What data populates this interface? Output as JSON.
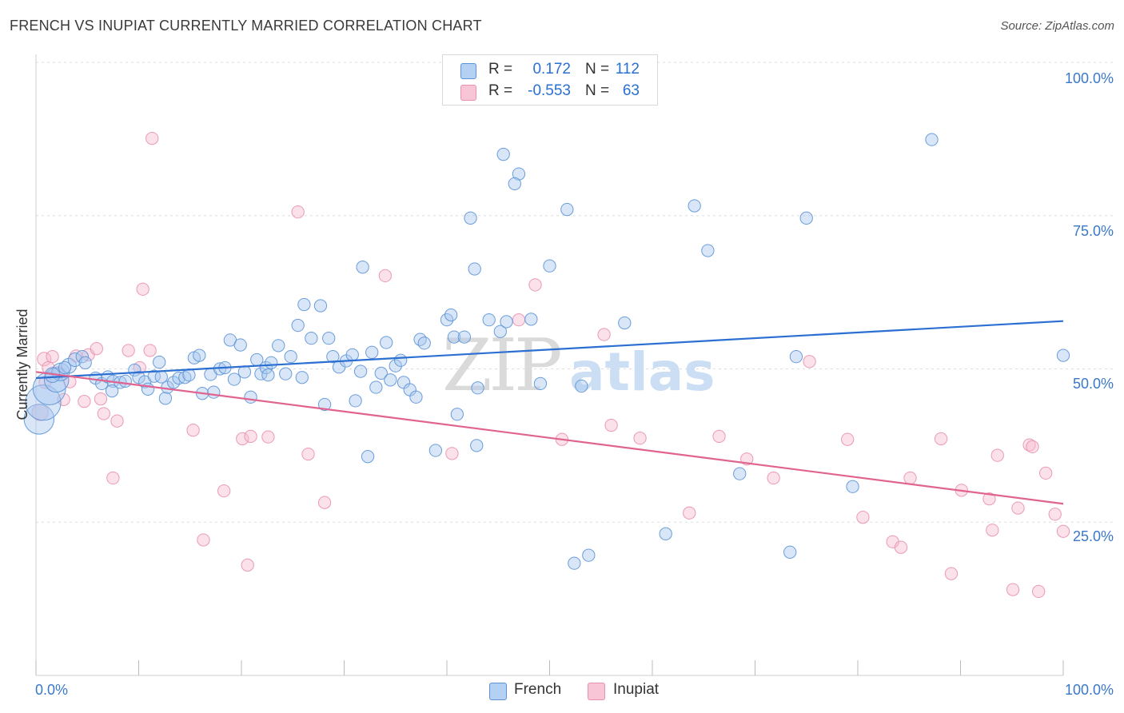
{
  "title": "FRENCH VS INUPIAT CURRENTLY MARRIED CORRELATION CHART",
  "source": "Source: ZipAtlas.com",
  "legend": {
    "rows": [
      {
        "r_label": "R =",
        "r_value": "0.172",
        "n_label": "N =",
        "n_value": "112"
      },
      {
        "r_label": "R =",
        "r_value": "-0.553",
        "n_label": "N =",
        "n_value": "63"
      }
    ]
  },
  "bottom_legend": {
    "french": "French",
    "inupiat": "Inupiat"
  },
  "watermark": {
    "zip": "ZIP",
    "atlas": "atlas"
  },
  "colors": {
    "french_fill": "#a9c8f0",
    "french_stroke": "#5b93d6",
    "french_line": "#2a6fd1",
    "inupiat_fill": "#f6bcd0",
    "inupiat_stroke": "#e98fb0",
    "inupiat_line": "#e0648f",
    "axis_text": "#3a78c9",
    "grid": "#dddddd"
  },
  "chart_data": {
    "type": "scatter",
    "title": "FRENCH VS INUPIAT CURRENTLY MARRIED CORRELATION CHART",
    "xlabel": "",
    "ylabel": "Currently Married",
    "xlim": [
      0,
      100
    ],
    "ylim": [
      0,
      100
    ],
    "x_tick_labels": [
      "0.0%",
      "100.0%"
    ],
    "y_tick_labels": [
      "25.0%",
      "50.0%",
      "75.0%",
      "100.0%"
    ],
    "y_ticks": [
      25,
      50,
      75,
      100
    ],
    "grid": true,
    "series": [
      {
        "name": "French",
        "r": 0.172,
        "n": 112,
        "trend": {
          "x": [
            0,
            100
          ],
          "y": [
            48.5,
            57.8
          ]
        },
        "points": [
          [
            0.3,
            41.8,
            2.2
          ],
          [
            0.7,
            44.5,
            2.6
          ],
          [
            1.3,
            46.8,
            2.4
          ],
          [
            2.0,
            48.2,
            1.8
          ],
          [
            2.4,
            49.5,
            1.3
          ],
          [
            3.2,
            50.5,
            1.1
          ],
          [
            3.8,
            51.5,
            1.0
          ],
          [
            1.6,
            49.0,
            1.1
          ],
          [
            4.5,
            52.0,
            0.9
          ],
          [
            4.8,
            51.0,
            0.9
          ],
          [
            5.8,
            48.5,
            0.9
          ],
          [
            6.4,
            47.6,
            0.9
          ],
          [
            7.0,
            48.7,
            0.9
          ],
          [
            7.5,
            48.0,
            0.9
          ],
          [
            7.4,
            46.4,
            0.9
          ],
          [
            8.2,
            47.8,
            0.9
          ],
          [
            8.7,
            48.0,
            0.9
          ],
          [
            9.6,
            49.8,
            0.9
          ],
          [
            10.0,
            48.6,
            0.9
          ],
          [
            10.6,
            47.9,
            0.9
          ],
          [
            10.9,
            46.7,
            0.9
          ],
          [
            11.5,
            48.8,
            0.9
          ],
          [
            12.2,
            48.7,
            0.9
          ],
          [
            12.6,
            45.2,
            0.9
          ],
          [
            12.8,
            47.0,
            0.9
          ],
          [
            13.4,
            47.8,
            0.9
          ],
          [
            13.9,
            48.5,
            0.9
          ],
          [
            14.5,
            48.6,
            0.9
          ],
          [
            14.9,
            49.0,
            0.9
          ],
          [
            15.4,
            51.8,
            0.9
          ],
          [
            15.9,
            52.2,
            0.9
          ],
          [
            16.2,
            46.0,
            0.9
          ],
          [
            17.0,
            49.1,
            0.9
          ],
          [
            17.3,
            46.2,
            0.9
          ],
          [
            17.9,
            50.0,
            0.9
          ],
          [
            18.4,
            50.2,
            0.9
          ],
          [
            18.9,
            54.7,
            0.9
          ],
          [
            19.3,
            48.3,
            0.9
          ],
          [
            19.9,
            53.9,
            0.9
          ],
          [
            20.3,
            49.5,
            0.9
          ],
          [
            20.9,
            45.4,
            0.9
          ],
          [
            21.5,
            51.5,
            0.9
          ],
          [
            21.9,
            49.2,
            0.9
          ],
          [
            22.4,
            50.2,
            0.9
          ],
          [
            22.9,
            51.0,
            0.9
          ],
          [
            23.6,
            53.8,
            0.9
          ],
          [
            24.3,
            49.2,
            0.9
          ],
          [
            24.8,
            52.0,
            0.9
          ],
          [
            25.5,
            57.1,
            0.9
          ],
          [
            25.9,
            48.6,
            0.9
          ],
          [
            26.1,
            60.5,
            0.9
          ],
          [
            26.8,
            55.0,
            0.9
          ],
          [
            27.7,
            60.3,
            0.9
          ],
          [
            28.1,
            44.2,
            0.9
          ],
          [
            28.5,
            55.0,
            0.9
          ],
          [
            28.9,
            52.0,
            0.9
          ],
          [
            29.5,
            50.3,
            0.9
          ],
          [
            30.2,
            51.3,
            0.9
          ],
          [
            30.8,
            52.3,
            0.9
          ],
          [
            31.1,
            44.8,
            0.9
          ],
          [
            31.6,
            49.6,
            0.9
          ],
          [
            31.8,
            66.6,
            0.9
          ],
          [
            32.3,
            35.7,
            0.9
          ],
          [
            32.7,
            52.7,
            0.9
          ],
          [
            33.1,
            47.0,
            0.9
          ],
          [
            33.6,
            49.3,
            0.9
          ],
          [
            34.1,
            54.3,
            0.9
          ],
          [
            34.5,
            48.2,
            0.9
          ],
          [
            35.0,
            50.5,
            0.9
          ],
          [
            35.5,
            51.4,
            0.9
          ],
          [
            35.8,
            47.8,
            0.9
          ],
          [
            36.4,
            46.6,
            0.9
          ],
          [
            37.0,
            45.4,
            0.9
          ],
          [
            37.4,
            54.8,
            0.9
          ],
          [
            37.8,
            54.2,
            0.9
          ],
          [
            38.9,
            36.7,
            0.9
          ],
          [
            40.0,
            58.0,
            0.9
          ],
          [
            40.4,
            58.8,
            0.9
          ],
          [
            40.7,
            55.2,
            0.9
          ],
          [
            41.0,
            42.6,
            0.9
          ],
          [
            41.7,
            55.2,
            0.9
          ],
          [
            42.3,
            74.6,
            0.9
          ],
          [
            42.7,
            66.3,
            0.9
          ],
          [
            42.9,
            37.5,
            0.9
          ],
          [
            43.0,
            46.9,
            0.9
          ],
          [
            44.1,
            58.0,
            0.9
          ],
          [
            45.2,
            56.1,
            0.9
          ],
          [
            45.5,
            85.0,
            0.9
          ],
          [
            45.8,
            57.7,
            0.9
          ],
          [
            47.0,
            81.8,
            0.9
          ],
          [
            48.2,
            58.1,
            0.9
          ],
          [
            49.1,
            47.6,
            0.9
          ],
          [
            50.0,
            66.8,
            0.9
          ],
          [
            51.7,
            76.0,
            0.9
          ],
          [
            52.4,
            18.3,
            0.9
          ],
          [
            53.1,
            47.2,
            0.9
          ],
          [
            53.8,
            19.6,
            0.9
          ],
          [
            57.3,
            57.5,
            0.9
          ],
          [
            61.3,
            23.1,
            0.9
          ],
          [
            64.1,
            76.6,
            0.9
          ],
          [
            65.4,
            69.3,
            0.9
          ],
          [
            68.5,
            32.9,
            0.9
          ],
          [
            73.4,
            20.1,
            0.9
          ],
          [
            74.0,
            52.0,
            0.9
          ],
          [
            75.0,
            74.6,
            0.9
          ],
          [
            79.5,
            30.8,
            0.9
          ],
          [
            87.2,
            87.4,
            0.9
          ],
          [
            100.0,
            52.2,
            0.9
          ],
          [
            46.6,
            80.2,
            0.9
          ],
          [
            22.6,
            49.0,
            0.9
          ],
          [
            2.8,
            50.2,
            0.9
          ],
          [
            12.0,
            51.1,
            0.9
          ]
        ]
      },
      {
        "name": "Inupiat",
        "r": -0.553,
        "n": 63,
        "trend": {
          "x": [
            0,
            100
          ],
          "y": [
            49.5,
            28.0
          ]
        },
        "points": [
          [
            0.4,
            42.9,
            1.2
          ],
          [
            0.8,
            51.6,
            1.0
          ],
          [
            1.2,
            50.2,
            0.9
          ],
          [
            1.6,
            52.0,
            0.9
          ],
          [
            2.2,
            49.4,
            0.9
          ],
          [
            2.7,
            45.0,
            0.9
          ],
          [
            3.3,
            47.9,
            0.9
          ],
          [
            3.9,
            52.1,
            0.9
          ],
          [
            4.7,
            44.7,
            0.9
          ],
          [
            5.1,
            52.3,
            0.9
          ],
          [
            5.9,
            53.3,
            0.9
          ],
          [
            6.3,
            45.1,
            0.9
          ],
          [
            6.6,
            42.7,
            0.9
          ],
          [
            7.5,
            32.2,
            0.9
          ],
          [
            7.9,
            41.5,
            0.9
          ],
          [
            9.0,
            53.0,
            0.9
          ],
          [
            10.1,
            50.2,
            0.9
          ],
          [
            10.4,
            63.0,
            0.9
          ],
          [
            11.1,
            53.0,
            0.9
          ],
          [
            11.3,
            87.6,
            0.9
          ],
          [
            15.3,
            40.0,
            0.9
          ],
          [
            16.3,
            22.1,
            0.9
          ],
          [
            18.3,
            30.1,
            0.9
          ],
          [
            20.1,
            38.6,
            0.9
          ],
          [
            20.9,
            39.0,
            0.9
          ],
          [
            20.6,
            18.0,
            0.9
          ],
          [
            22.6,
            38.9,
            0.9
          ],
          [
            25.5,
            75.6,
            0.9
          ],
          [
            26.5,
            36.1,
            0.9
          ],
          [
            28.1,
            28.2,
            0.9
          ],
          [
            34.0,
            65.2,
            0.9
          ],
          [
            40.5,
            36.2,
            0.9
          ],
          [
            47.0,
            58.0,
            0.9
          ],
          [
            48.6,
            63.7,
            0.9
          ],
          [
            51.2,
            38.5,
            0.9
          ],
          [
            55.3,
            55.6,
            0.9
          ],
          [
            56.0,
            40.8,
            0.9
          ],
          [
            58.8,
            38.7,
            0.9
          ],
          [
            66.5,
            39.0,
            0.9
          ],
          [
            69.2,
            35.3,
            0.9
          ],
          [
            71.8,
            32.2,
            0.9
          ],
          [
            75.3,
            51.2,
            0.9
          ],
          [
            79.0,
            38.5,
            0.9
          ],
          [
            80.5,
            25.8,
            0.9
          ],
          [
            83.4,
            21.8,
            0.9
          ],
          [
            84.2,
            20.9,
            0.9
          ],
          [
            85.1,
            32.2,
            0.9
          ],
          [
            88.1,
            38.6,
            0.9
          ],
          [
            89.1,
            16.6,
            0.9
          ],
          [
            90.1,
            30.2,
            0.9
          ],
          [
            92.8,
            28.8,
            0.9
          ],
          [
            93.1,
            23.7,
            0.9
          ],
          [
            93.6,
            35.9,
            0.9
          ],
          [
            95.1,
            14.0,
            0.9
          ],
          [
            95.6,
            27.3,
            0.9
          ],
          [
            96.7,
            37.6,
            0.9
          ],
          [
            97.0,
            37.3,
            0.9
          ],
          [
            97.6,
            13.7,
            0.9
          ],
          [
            98.3,
            33.0,
            0.9
          ],
          [
            99.2,
            26.3,
            0.9
          ],
          [
            100.0,
            23.5,
            0.9
          ],
          [
            63.6,
            26.5,
            0.9
          ],
          [
            0.9,
            47.8,
            0.9
          ]
        ]
      }
    ]
  }
}
